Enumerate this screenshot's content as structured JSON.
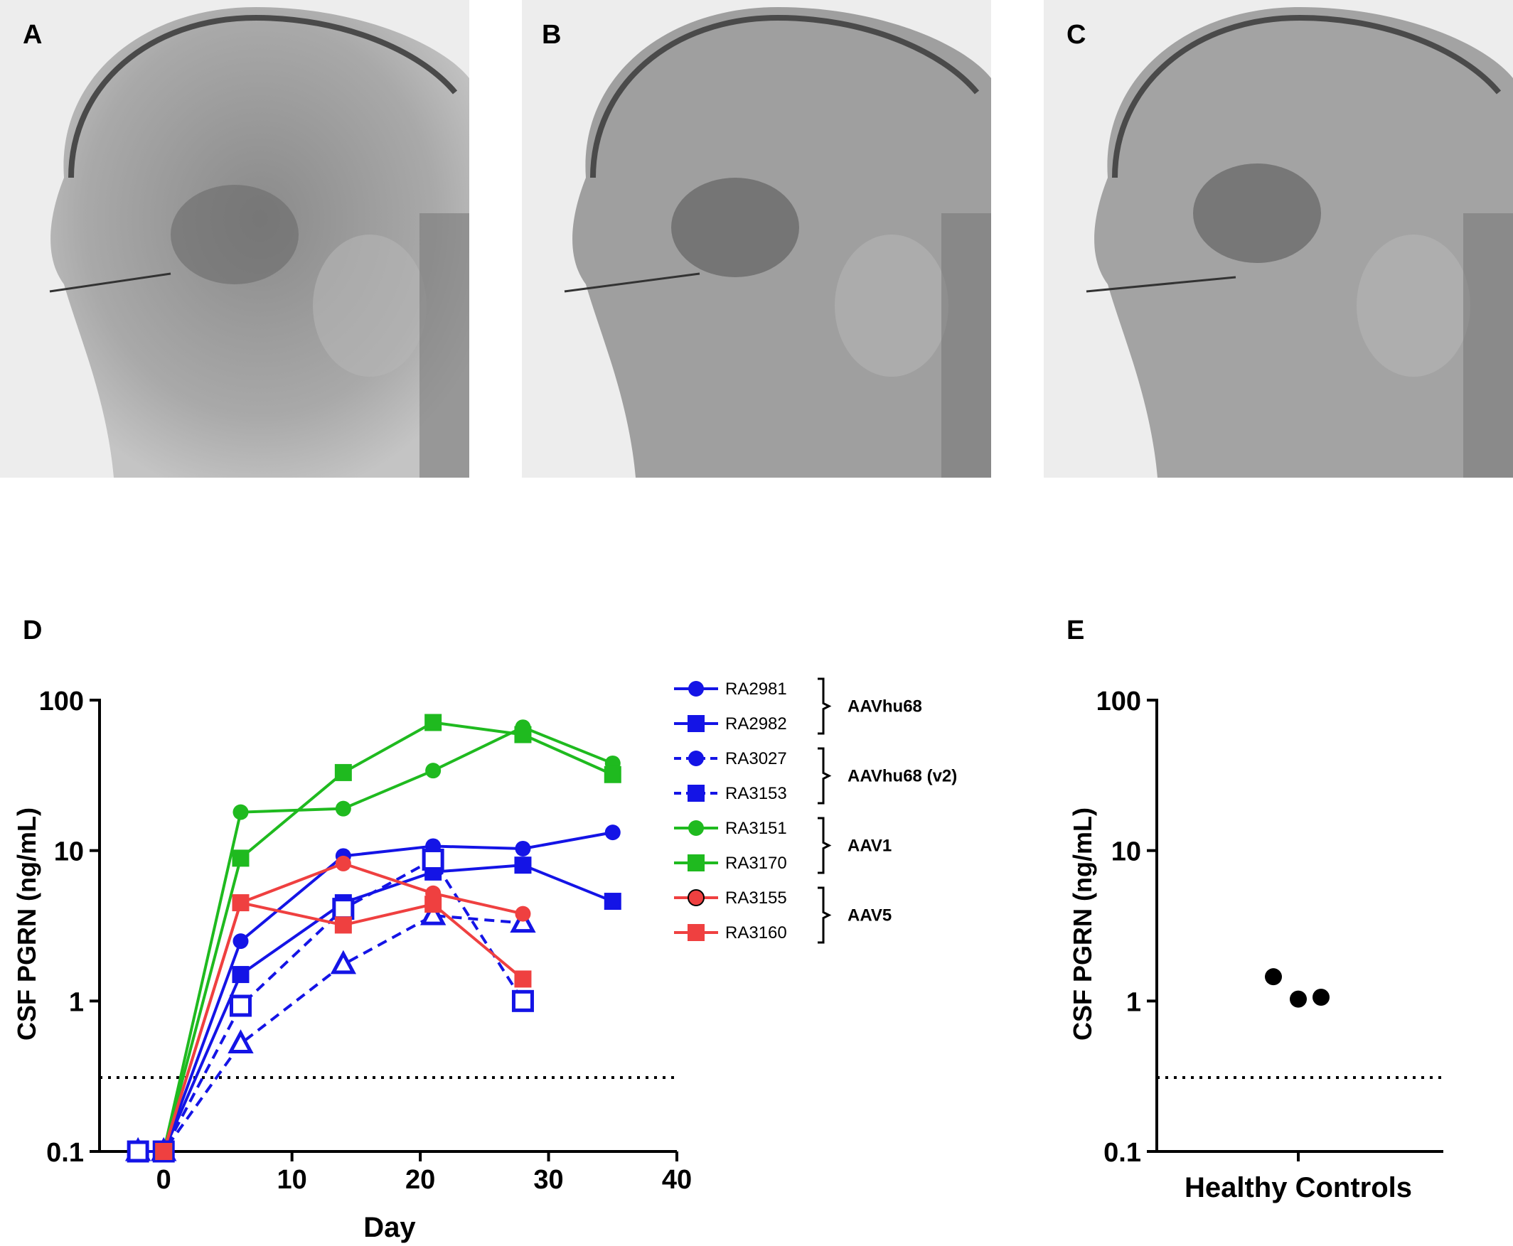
{
  "panels": {
    "A": "A",
    "B": "B",
    "C": "C",
    "D": "D",
    "E": "E"
  },
  "chart_data": [
    {
      "panel": "D",
      "type": "line",
      "xlabel": "Day",
      "ylabel": "CSF PGRN (ng/mL)",
      "xlim": [
        -5,
        40
      ],
      "ylim": [
        0.1,
        100
      ],
      "yscale": "log",
      "xticks": [
        0,
        10,
        20,
        30,
        40
      ],
      "yticks": [
        0.1,
        1,
        10,
        100
      ],
      "ytick_labels": [
        "0.1",
        "1",
        "10",
        "100"
      ],
      "lower_limit_line": 0.31,
      "series": [
        {
          "name": "RA2981",
          "color": "#1414e6",
          "marker": "circle",
          "dash": false,
          "x": [
            -2,
            0,
            6,
            14,
            21,
            28,
            35
          ],
          "y": [
            0.1,
            0.1,
            2.5,
            9.2,
            10.7,
            10.3,
            13.2
          ]
        },
        {
          "name": "RA2982",
          "color": "#1414e6",
          "marker": "square",
          "dash": false,
          "x": [
            -2,
            0,
            6,
            14,
            21,
            28,
            35
          ],
          "y": [
            0.1,
            0.1,
            1.5,
            4.5,
            7.2,
            8.0,
            4.6
          ]
        },
        {
          "name": "RA3027",
          "color": "#1414e6",
          "marker": "triangle-open",
          "dash": true,
          "x": [
            -2,
            0,
            6,
            14,
            21,
            28
          ],
          "y": [
            0.1,
            0.1,
            0.52,
            1.75,
            3.7,
            3.3
          ]
        },
        {
          "name": "RA3153",
          "color": "#1414e6",
          "marker": "square-open",
          "dash": true,
          "x": [
            -2,
            0,
            6,
            14,
            21,
            28
          ],
          "y": [
            0.1,
            0.1,
            0.93,
            4.1,
            8.7,
            1.0
          ]
        },
        {
          "name": "RA3151",
          "color": "#1fba1f",
          "marker": "circle",
          "dash": false,
          "x": [
            0,
            6,
            14,
            21,
            28,
            35
          ],
          "y": [
            0.1,
            18.0,
            19.0,
            34.0,
            66.0,
            38.0
          ]
        },
        {
          "name": "RA3170",
          "color": "#1fba1f",
          "marker": "square",
          "dash": false,
          "x": [
            0,
            6,
            14,
            21,
            28,
            35
          ],
          "y": [
            0.1,
            8.9,
            33.0,
            71.0,
            59.0,
            32.0
          ]
        },
        {
          "name": "RA3155",
          "color": "#ef4040",
          "marker": "circle",
          "dash": false,
          "x": [
            0,
            6,
            14,
            21,
            28
          ],
          "y": [
            0.1,
            4.5,
            8.2,
            5.2,
            3.8
          ]
        },
        {
          "name": "RA3160",
          "color": "#ef4040",
          "marker": "square",
          "dash": false,
          "x": [
            0,
            6,
            14,
            21,
            28
          ],
          "y": [
            0.1,
            4.5,
            3.2,
            4.4,
            1.4
          ]
        }
      ],
      "legend_groups": [
        {
          "label": "AAVhu68",
          "members": [
            "RA2981",
            "RA2982"
          ]
        },
        {
          "label": "AAVhu68 (v2)",
          "members": [
            "RA3027",
            "RA3153"
          ]
        },
        {
          "label": "AAV1",
          "members": [
            "RA3151",
            "RA3170"
          ]
        },
        {
          "label": "AAV5",
          "members": [
            "RA3155",
            "RA3160"
          ]
        }
      ]
    },
    {
      "panel": "E",
      "type": "scatter",
      "xlabel": "Healthy Controls",
      "ylabel": "CSF PGRN (ng/mL)",
      "ylim": [
        0.1,
        100
      ],
      "yscale": "log",
      "yticks": [
        0.1,
        1,
        10,
        100
      ],
      "ytick_labels": [
        "0.1",
        "1",
        "10",
        "100"
      ],
      "lower_limit_line": 0.31,
      "points": [
        1.45,
        1.03,
        1.06
      ],
      "color": "#000000"
    }
  ]
}
